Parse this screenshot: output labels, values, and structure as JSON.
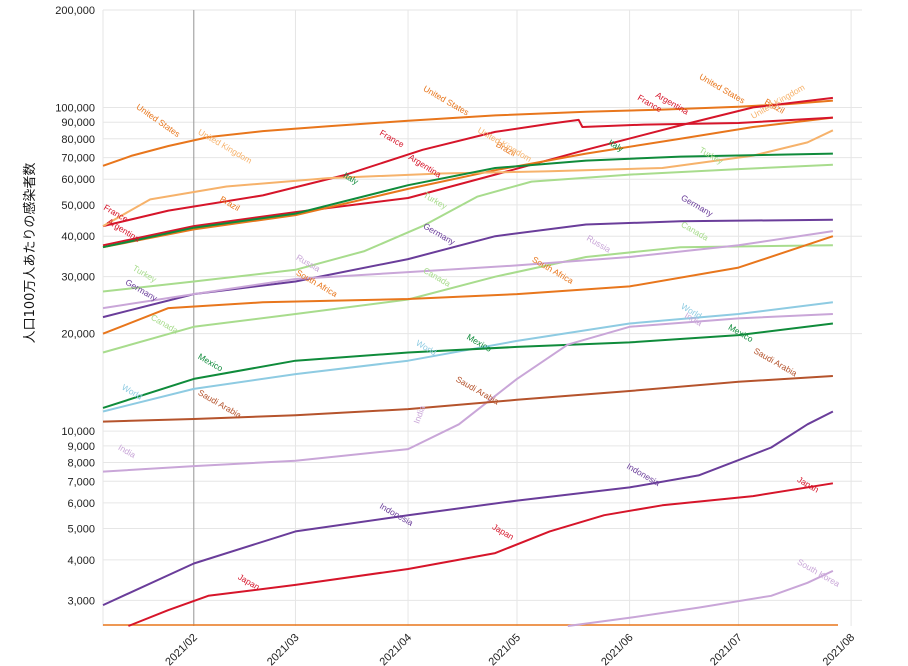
{
  "chart_data": {
    "type": "line",
    "title": "",
    "ylabel": "人口100万人あたりの感染者数",
    "xlabel": "",
    "yscale": "log",
    "ylim": [
      2500,
      200000
    ],
    "xlim": [
      "2021-01-07",
      "2021-08-04"
    ],
    "grid": true,
    "legend": "inline labels",
    "y_ticks": [
      {
        "v": 3000,
        "label": "3,000"
      },
      {
        "v": 4000,
        "label": "4,000"
      },
      {
        "v": 5000,
        "label": "5,000"
      },
      {
        "v": 6000,
        "label": "6,000"
      },
      {
        "v": 7000,
        "label": "7,000"
      },
      {
        "v": 8000,
        "label": "8,000"
      },
      {
        "v": 9000,
        "label": "9,000"
      },
      {
        "v": 10000,
        "label": "10,000"
      },
      {
        "v": 20000,
        "label": "20,000"
      },
      {
        "v": 30000,
        "label": "30,000"
      },
      {
        "v": 40000,
        "label": "40,000"
      },
      {
        "v": 50000,
        "label": "50,000"
      },
      {
        "v": 60000,
        "label": "60,000"
      },
      {
        "v": 70000,
        "label": "70,000"
      },
      {
        "v": 80000,
        "label": "80,000"
      },
      {
        "v": 90000,
        "label": "90,000"
      },
      {
        "v": 100000,
        "label": "100,000"
      },
      {
        "v": 200000,
        "label": "200,000"
      }
    ],
    "x_ticks": [
      {
        "date": "2021-02-01",
        "label": "2021/02"
      },
      {
        "date": "2021-03-01",
        "label": "2021/03"
      },
      {
        "date": "2021-04-01",
        "label": "2021/04"
      },
      {
        "date": "2021-05-01",
        "label": "2021/05"
      },
      {
        "date": "2021-06-01",
        "label": "2021/06"
      },
      {
        "date": "2021-07-01",
        "label": "2021/07"
      },
      {
        "date": "2021-08-01",
        "label": "2021/08"
      }
    ],
    "series": [
      {
        "name": "United States",
        "color": "#e8761c",
        "points": [
          [
            "2021-01-07",
            66000
          ],
          [
            "2021-01-15",
            71000
          ],
          [
            "2021-01-25",
            76000
          ],
          [
            "2021-02-05",
            81000
          ],
          [
            "2021-02-20",
            84500
          ],
          [
            "2021-03-10",
            87500
          ],
          [
            "2021-04-01",
            91000
          ],
          [
            "2021-04-25",
            94500
          ],
          [
            "2021-05-20",
            97000
          ],
          [
            "2021-06-10",
            98500
          ],
          [
            "2021-07-01",
            100500
          ],
          [
            "2021-07-15",
            102500
          ],
          [
            "2021-07-27",
            105000
          ]
        ],
        "labels": [
          [
            "2021-01-16",
            99500,
            35
          ],
          [
            "2021-04-05",
            113000,
            30
          ],
          [
            "2021-06-20",
            123000,
            30
          ]
        ]
      },
      {
        "name": "Argentina",
        "color": "#d6152a",
        "points": [
          [
            "2021-01-07",
            37500
          ],
          [
            "2021-02-01",
            43000
          ],
          [
            "2021-03-01",
            47500
          ],
          [
            "2021-04-01",
            52500
          ],
          [
            "2021-04-25",
            62000
          ],
          [
            "2021-05-20",
            74000
          ],
          [
            "2021-06-15",
            88000
          ],
          [
            "2021-07-05",
            100000
          ],
          [
            "2021-07-27",
            107000
          ]
        ],
        "labels": [
          [
            "2021-01-08",
            44000,
            32
          ],
          [
            "2021-04-01",
            69500,
            32
          ],
          [
            "2021-06-08",
            108000,
            30
          ]
        ]
      },
      {
        "name": "Brazil",
        "color": "#e8761c",
        "points": [
          [
            "2021-01-07",
            37000
          ],
          [
            "2021-02-01",
            42000
          ],
          [
            "2021-03-01",
            46500
          ],
          [
            "2021-04-01",
            56000
          ],
          [
            "2021-04-25",
            64000
          ],
          [
            "2021-05-20",
            72000
          ],
          [
            "2021-06-15",
            80000
          ],
          [
            "2021-07-05",
            87000
          ],
          [
            "2021-07-27",
            93000
          ]
        ],
        "labels": [
          [
            "2021-02-08",
            51500,
            30
          ],
          [
            "2021-04-25",
            76000,
            30
          ],
          [
            "2021-07-08",
            103000,
            30
          ]
        ]
      },
      {
        "name": "France",
        "color": "#d6152a",
        "points": [
          [
            "2021-01-07",
            43000
          ],
          [
            "2021-01-25",
            48000
          ],
          [
            "2021-02-20",
            53500
          ],
          [
            "2021-03-15",
            62000
          ],
          [
            "2021-04-05",
            74000
          ],
          [
            "2021-04-25",
            84000
          ],
          [
            "2021-05-10",
            89000
          ],
          [
            "2021-05-18",
            91500
          ],
          [
            "2021-05-19",
            87000
          ],
          [
            "2021-06-05",
            88500
          ],
          [
            "2021-07-01",
            89500
          ],
          [
            "2021-07-27",
            93000
          ]
        ],
        "labels": [
          [
            "2021-01-07",
            48500,
            30
          ],
          [
            "2021-03-24",
            82500,
            30
          ],
          [
            "2021-06-03",
            106000,
            30
          ]
        ]
      },
      {
        "name": "United Kingdom",
        "color": "#f6b26b",
        "points": [
          [
            "2021-01-07",
            43000
          ],
          [
            "2021-01-20",
            52000
          ],
          [
            "2021-02-10",
            57000
          ],
          [
            "2021-03-10",
            60500
          ],
          [
            "2021-04-10",
            62500
          ],
          [
            "2021-05-10",
            63500
          ],
          [
            "2021-06-10",
            65000
          ],
          [
            "2021-07-05",
            71000
          ],
          [
            "2021-07-20",
            78000
          ],
          [
            "2021-07-27",
            85000
          ]
        ],
        "labels": [
          [
            "2021-02-02",
            83000,
            30
          ],
          [
            "2021-04-20",
            84000,
            30
          ],
          [
            "2021-07-05",
            92000,
            -30
          ]
        ]
      },
      {
        "name": "Italy",
        "color": "#0f8b3b",
        "points": [
          [
            "2021-01-07",
            37000
          ],
          [
            "2021-02-01",
            42500
          ],
          [
            "2021-03-01",
            47000
          ],
          [
            "2021-04-01",
            57500
          ],
          [
            "2021-04-25",
            65000
          ],
          [
            "2021-05-20",
            68500
          ],
          [
            "2021-06-15",
            70500
          ],
          [
            "2021-07-27",
            72000
          ]
        ],
        "labels": [
          [
            "2021-03-14",
            61000,
            30
          ],
          [
            "2021-05-26",
            77000,
            30
          ]
        ]
      },
      {
        "name": "Turkey",
        "color": "#a8dc8d",
        "points": [
          [
            "2021-01-07",
            27000
          ],
          [
            "2021-02-01",
            29000
          ],
          [
            "2021-03-01",
            31500
          ],
          [
            "2021-03-20",
            36000
          ],
          [
            "2021-04-05",
            43000
          ],
          [
            "2021-04-20",
            53000
          ],
          [
            "2021-05-05",
            59000
          ],
          [
            "2021-06-01",
            62000
          ],
          [
            "2021-07-01",
            64500
          ],
          [
            "2021-07-27",
            66500
          ]
        ],
        "labels": [
          [
            "2021-01-15",
            31500,
            30
          ],
          [
            "2021-04-05",
            53000,
            30
          ],
          [
            "2021-06-20",
            73000,
            30
          ]
        ]
      },
      {
        "name": "Germany",
        "color": "#6a3d9a",
        "points": [
          [
            "2021-01-07",
            22500
          ],
          [
            "2021-02-01",
            26500
          ],
          [
            "2021-03-01",
            29000
          ],
          [
            "2021-04-01",
            34000
          ],
          [
            "2021-04-25",
            40000
          ],
          [
            "2021-05-20",
            43500
          ],
          [
            "2021-06-15",
            44500
          ],
          [
            "2021-07-27",
            45000
          ]
        ],
        "labels": [
          [
            "2021-01-13",
            28500,
            30
          ],
          [
            "2021-04-05",
            42500,
            30
          ],
          [
            "2021-06-15",
            52000,
            30
          ]
        ]
      },
      {
        "name": "Canada",
        "color": "#a8dc8d",
        "points": [
          [
            "2021-01-07",
            17500
          ],
          [
            "2021-02-01",
            21000
          ],
          [
            "2021-03-01",
            23000
          ],
          [
            "2021-04-01",
            25500
          ],
          [
            "2021-04-25",
            30000
          ],
          [
            "2021-05-20",
            34500
          ],
          [
            "2021-06-15",
            37000
          ],
          [
            "2021-07-27",
            37500
          ]
        ],
        "labels": [
          [
            "2021-01-20",
            22200,
            30
          ],
          [
            "2021-04-05",
            31000,
            30
          ],
          [
            "2021-06-15",
            43000,
            30
          ]
        ]
      },
      {
        "name": "Russia",
        "color": "#c9a6d8",
        "points": [
          [
            "2021-01-07",
            24000
          ],
          [
            "2021-02-01",
            26500
          ],
          [
            "2021-03-01",
            29500
          ],
          [
            "2021-04-01",
            31000
          ],
          [
            "2021-05-01",
            32500
          ],
          [
            "2021-06-01",
            34500
          ],
          [
            "2021-07-01",
            37500
          ],
          [
            "2021-07-27",
            41500
          ]
        ],
        "labels": [
          [
            "2021-03-01",
            34000,
            30
          ],
          [
            "2021-05-20",
            39000,
            30
          ]
        ]
      },
      {
        "name": "South Africa",
        "color": "#e8761c",
        "points": [
          [
            "2021-01-07",
            20000
          ],
          [
            "2021-01-25",
            24000
          ],
          [
            "2021-02-20",
            25000
          ],
          [
            "2021-04-01",
            25600
          ],
          [
            "2021-05-01",
            26500
          ],
          [
            "2021-06-01",
            28000
          ],
          [
            "2021-07-01",
            32000
          ],
          [
            "2021-07-27",
            40000
          ]
        ],
        "labels": [
          [
            "2021-03-01",
            30500,
            30
          ],
          [
            "2021-05-05",
            33500,
            30
          ]
        ]
      },
      {
        "name": "World",
        "color": "#8ecbe2",
        "points": [
          [
            "2021-01-07",
            11500
          ],
          [
            "2021-02-01",
            13500
          ],
          [
            "2021-03-01",
            15000
          ],
          [
            "2021-04-01",
            16500
          ],
          [
            "2021-05-01",
            19000
          ],
          [
            "2021-06-01",
            21500
          ],
          [
            "2021-07-01",
            23000
          ],
          [
            "2021-07-27",
            25000
          ]
        ],
        "labels": [
          [
            "2021-01-12",
            13500,
            30
          ],
          [
            "2021-04-03",
            18500,
            30
          ],
          [
            "2021-06-15",
            24000,
            30
          ]
        ]
      },
      {
        "name": "Mexico",
        "color": "#0f8b3b",
        "points": [
          [
            "2021-01-07",
            11800
          ],
          [
            "2021-02-01",
            14500
          ],
          [
            "2021-03-01",
            16500
          ],
          [
            "2021-04-01",
            17500
          ],
          [
            "2021-05-01",
            18200
          ],
          [
            "2021-06-01",
            18800
          ],
          [
            "2021-07-01",
            19800
          ],
          [
            "2021-07-27",
            21500
          ]
        ],
        "labels": [
          [
            "2021-02-02",
            16800,
            30
          ],
          [
            "2021-04-17",
            19300,
            30
          ],
          [
            "2021-06-28",
            20700,
            30
          ]
        ]
      },
      {
        "name": "India",
        "color": "#c9a6d8",
        "points": [
          [
            "2021-01-07",
            7500
          ],
          [
            "2021-02-01",
            7800
          ],
          [
            "2021-03-01",
            8100
          ],
          [
            "2021-04-01",
            8800
          ],
          [
            "2021-04-15",
            10500
          ],
          [
            "2021-05-01",
            14500
          ],
          [
            "2021-05-15",
            18500
          ],
          [
            "2021-06-01",
            21000
          ],
          [
            "2021-07-01",
            22300
          ],
          [
            "2021-07-27",
            23000
          ]
        ],
        "labels": [
          [
            "2021-01-11",
            8800,
            30
          ],
          [
            "2021-04-04",
            10500,
            -70
          ],
          [
            "2021-06-16",
            22500,
            30
          ]
        ]
      },
      {
        "name": "Saudi Arabia",
        "color": "#b5532c",
        "points": [
          [
            "2021-01-07",
            10700
          ],
          [
            "2021-02-01",
            10900
          ],
          [
            "2021-03-01",
            11200
          ],
          [
            "2021-04-01",
            11700
          ],
          [
            "2021-05-01",
            12500
          ],
          [
            "2021-06-01",
            13300
          ],
          [
            "2021-07-01",
            14200
          ],
          [
            "2021-07-27",
            14800
          ]
        ],
        "labels": [
          [
            "2021-02-02",
            13000,
            30
          ],
          [
            "2021-04-14",
            14300,
            30
          ],
          [
            "2021-07-05",
            17500,
            30
          ]
        ]
      },
      {
        "name": "Indonesia",
        "color": "#6a3d9a",
        "points": [
          [
            "2021-01-07",
            2900
          ],
          [
            "2021-02-01",
            3900
          ],
          [
            "2021-03-01",
            4900
          ],
          [
            "2021-04-01",
            5500
          ],
          [
            "2021-05-01",
            6100
          ],
          [
            "2021-06-01",
            6700
          ],
          [
            "2021-06-20",
            7300
          ],
          [
            "2021-07-10",
            8900
          ],
          [
            "2021-07-20",
            10500
          ],
          [
            "2021-07-27",
            11500
          ]
        ],
        "labels": [
          [
            "2021-03-24",
            5800,
            30
          ],
          [
            "2021-05-31",
            7700,
            30
          ]
        ]
      },
      {
        "name": "Japan",
        "color": "#d6152a",
        "points": [
          [
            "2021-01-14",
            2500
          ],
          [
            "2021-01-25",
            2800
          ],
          [
            "2021-02-05",
            3100
          ],
          [
            "2021-03-01",
            3350
          ],
          [
            "2021-04-01",
            3750
          ],
          [
            "2021-04-25",
            4200
          ],
          [
            "2021-05-10",
            4900
          ],
          [
            "2021-05-25",
            5500
          ],
          [
            "2021-06-10",
            5900
          ],
          [
            "2021-07-05",
            6300
          ],
          [
            "2021-07-27",
            6900
          ]
        ],
        "labels": [
          [
            "2021-02-13",
            3500,
            30
          ],
          [
            "2021-04-24",
            5000,
            30
          ],
          [
            "2021-07-17",
            7000,
            30
          ]
        ]
      },
      {
        "name": "South Korea",
        "color": "#c9a6d8",
        "points": [
          [
            "2021-05-15",
            2500
          ],
          [
            "2021-06-01",
            2650
          ],
          [
            "2021-06-20",
            2850
          ],
          [
            "2021-07-10",
            3100
          ],
          [
            "2021-07-20",
            3400
          ],
          [
            "2021-07-27",
            3700
          ]
        ],
        "labels": [
          [
            "2021-07-17",
            3900,
            30
          ]
        ]
      }
    ]
  }
}
